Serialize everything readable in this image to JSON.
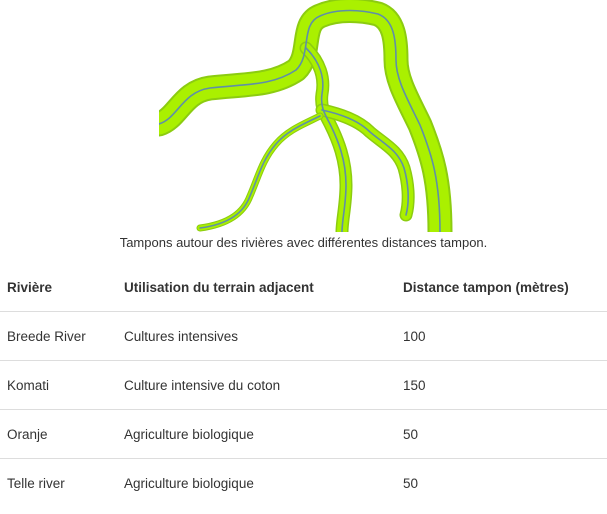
{
  "figure": {
    "caption": "Tampons autour des rivières avec différentes distances tampon.",
    "colors": {
      "buffer": "#aaf000",
      "buffer_edge": "#8ccc10",
      "river": "#5f8fa8"
    }
  },
  "table": {
    "headers": {
      "river": "Rivière",
      "land_use": "Utilisation du terrain adjacent",
      "buffer_distance": "Distance tampon (mètres)"
    },
    "rows": [
      {
        "river": "Breede River",
        "land_use": "Cultures intensives",
        "buffer_distance": "100"
      },
      {
        "river": "Komati",
        "land_use": "Culture intensive du coton",
        "buffer_distance": "150"
      },
      {
        "river": "Oranje",
        "land_use": "Agriculture biologique",
        "buffer_distance": "50"
      },
      {
        "river": "Telle river",
        "land_use": "Agriculture biologique",
        "buffer_distance": "50"
      }
    ]
  }
}
